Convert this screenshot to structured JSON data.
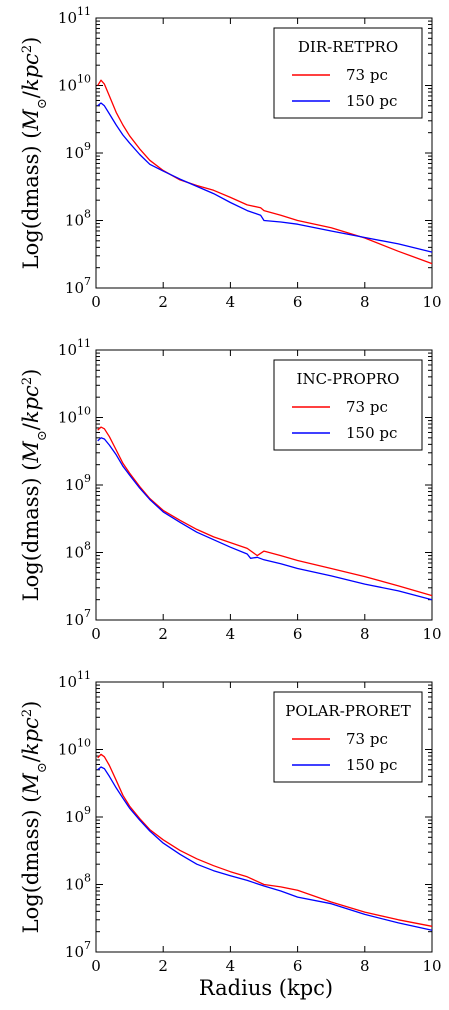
{
  "figure": {
    "xlabel": "Radius (kpc)",
    "ylabel_parts": [
      "Log(dmass) (",
      "M",
      "⊙",
      "/",
      "kpc",
      "2",
      ")"
    ]
  },
  "colors": {
    "red": "#ff0000",
    "blue": "#0000ff",
    "axis": "#000000"
  },
  "chart_data": [
    {
      "type": "line",
      "title": "",
      "legend_title": "DIR-RETPRO",
      "legend_position": "top-right",
      "grid": false,
      "y_scale": "log",
      "xlim": [
        0,
        10
      ],
      "ylim": [
        10000000.0,
        100000000000.0
      ],
      "x_ticks": [
        "0",
        "2",
        "4",
        "6",
        "8",
        "10"
      ],
      "y_ticks": [
        {
          "base": "10",
          "exp": "7"
        },
        {
          "base": "10",
          "exp": "8"
        },
        {
          "base": "10",
          "exp": "9"
        },
        {
          "base": "10",
          "exp": "10"
        },
        {
          "base": "10",
          "exp": "11"
        }
      ],
      "series": [
        {
          "name": "73 pc",
          "color": "#ff0000",
          "x": [
            0.05,
            0.15,
            0.25,
            0.4,
            0.6,
            0.8,
            1.0,
            1.3,
            1.6,
            2.0,
            2.5,
            3.0,
            3.5,
            4.0,
            4.5,
            4.9,
            5.0,
            5.5,
            6.0,
            7.0,
            8.0,
            9.0,
            10.0
          ],
          "y": [
            10000000000.0,
            12000000000.0,
            10500000000.0,
            7000000000.0,
            4000000000.0,
            2600000000.0,
            1800000000.0,
            1150000000.0,
            780000000.0,
            550000000.0,
            400000000.0,
            330000000.0,
            280000000.0,
            220000000.0,
            170000000.0,
            155000000.0,
            140000000.0,
            120000000.0,
            100000000.0,
            78000000.0,
            55000000.0,
            35000000.0,
            23000000.0
          ]
        },
        {
          "name": "150 pc",
          "color": "#0000ff",
          "x": [
            0.05,
            0.15,
            0.25,
            0.4,
            0.6,
            0.8,
            1.0,
            1.3,
            1.6,
            2.0,
            2.5,
            3.0,
            3.5,
            4.0,
            4.5,
            4.9,
            5.0,
            5.5,
            6.0,
            7.0,
            8.0,
            9.0,
            10.0
          ],
          "y": [
            5000000000.0,
            5500000000.0,
            5000000000.0,
            3800000000.0,
            2600000000.0,
            1850000000.0,
            1400000000.0,
            950000000.0,
            680000000.0,
            540000000.0,
            410000000.0,
            320000000.0,
            250000000.0,
            185000000.0,
            140000000.0,
            120000000.0,
            100000000.0,
            95000000.0,
            88000000.0,
            70000000.0,
            56000000.0,
            45000000.0,
            34000000.0
          ]
        }
      ]
    },
    {
      "type": "line",
      "title": "",
      "legend_title": "INC-PROPRO",
      "legend_position": "top-right",
      "grid": false,
      "y_scale": "log",
      "xlim": [
        0,
        10
      ],
      "ylim": [
        10000000.0,
        100000000000.0
      ],
      "x_ticks": [
        "0",
        "2",
        "4",
        "6",
        "8",
        "10"
      ],
      "y_ticks": [
        {
          "base": "10",
          "exp": "7"
        },
        {
          "base": "10",
          "exp": "8"
        },
        {
          "base": "10",
          "exp": "9"
        },
        {
          "base": "10",
          "exp": "10"
        },
        {
          "base": "10",
          "exp": "11"
        }
      ],
      "series": [
        {
          "name": "73 pc",
          "color": "#ff0000",
          "x": [
            0.05,
            0.15,
            0.25,
            0.4,
            0.6,
            0.8,
            1.0,
            1.3,
            1.6,
            2.0,
            2.5,
            3.0,
            3.5,
            4.0,
            4.5,
            4.8,
            5.0,
            5.5,
            6.0,
            7.0,
            8.0,
            9.0,
            10.0
          ],
          "y": [
            6500000000.0,
            7200000000.0,
            6800000000.0,
            5200000000.0,
            3300000000.0,
            2100000000.0,
            1500000000.0,
            950000000.0,
            630000000.0,
            420000000.0,
            300000000.0,
            220000000.0,
            170000000.0,
            140000000.0,
            115000000.0,
            90000000.0,
            105000000.0,
            90000000.0,
            76000000.0,
            58000000.0,
            44000000.0,
            32000000.0,
            23000000.0
          ]
        },
        {
          "name": "150 pc",
          "color": "#0000ff",
          "x": [
            0.05,
            0.15,
            0.25,
            0.4,
            0.6,
            0.8,
            1.0,
            1.3,
            1.6,
            2.0,
            2.5,
            3.0,
            3.5,
            4.0,
            4.5,
            4.6,
            4.8,
            5.0,
            5.5,
            6.0,
            7.0,
            8.0,
            9.0,
            10.0
          ],
          "y": [
            4500000000.0,
            5000000000.0,
            4800000000.0,
            3900000000.0,
            2800000000.0,
            1900000000.0,
            1400000000.0,
            900000000.0,
            610000000.0,
            400000000.0,
            280000000.0,
            200000000.0,
            155000000.0,
            120000000.0,
            95000000.0,
            82000000.0,
            85000000.0,
            78000000.0,
            68000000.0,
            58000000.0,
            45000000.0,
            34000000.0,
            27000000.0,
            20000000.0
          ]
        }
      ]
    },
    {
      "type": "line",
      "title": "",
      "legend_title": "POLAR-PRORET",
      "legend_position": "top-right",
      "grid": false,
      "y_scale": "log",
      "xlim": [
        0,
        10
      ],
      "ylim": [
        10000000.0,
        100000000000.0
      ],
      "x_ticks": [
        "0",
        "2",
        "4",
        "6",
        "8",
        "10"
      ],
      "y_ticks": [
        {
          "base": "10",
          "exp": "7"
        },
        {
          "base": "10",
          "exp": "8"
        },
        {
          "base": "10",
          "exp": "9"
        },
        {
          "base": "10",
          "exp": "10"
        },
        {
          "base": "10",
          "exp": "11"
        }
      ],
      "series": [
        {
          "name": "73 pc",
          "color": "#ff0000",
          "x": [
            0.05,
            0.15,
            0.25,
            0.4,
            0.6,
            0.8,
            1.0,
            1.3,
            1.6,
            2.0,
            2.5,
            3.0,
            3.5,
            4.0,
            4.5,
            5.0,
            5.5,
            6.0,
            7.0,
            8.0,
            9.0,
            10.0
          ],
          "y": [
            7500000000.0,
            8500000000.0,
            7800000000.0,
            5800000000.0,
            3500000000.0,
            2100000000.0,
            1450000000.0,
            950000000.0,
            650000000.0,
            460000000.0,
            320000000.0,
            240000000.0,
            190000000.0,
            155000000.0,
            130000000.0,
            100000000.0,
            92000000.0,
            82000000.0,
            55000000.0,
            39000000.0,
            30000000.0,
            24000000.0
          ]
        },
        {
          "name": "150 pc",
          "color": "#0000ff",
          "x": [
            0.05,
            0.15,
            0.25,
            0.4,
            0.6,
            0.8,
            1.0,
            1.3,
            1.6,
            2.0,
            2.5,
            3.0,
            3.5,
            4.0,
            4.5,
            5.0,
            5.5,
            6.0,
            7.0,
            8.0,
            9.0,
            10.0
          ],
          "y": [
            5000000000.0,
            5500000000.0,
            5200000000.0,
            4000000000.0,
            2700000000.0,
            1900000000.0,
            1350000000.0,
            900000000.0,
            620000000.0,
            410000000.0,
            280000000.0,
            200000000.0,
            160000000.0,
            135000000.0,
            115000000.0,
            95000000.0,
            80000000.0,
            65000000.0,
            52000000.0,
            36000000.0,
            27000000.0,
            21000000.0
          ]
        }
      ]
    }
  ]
}
